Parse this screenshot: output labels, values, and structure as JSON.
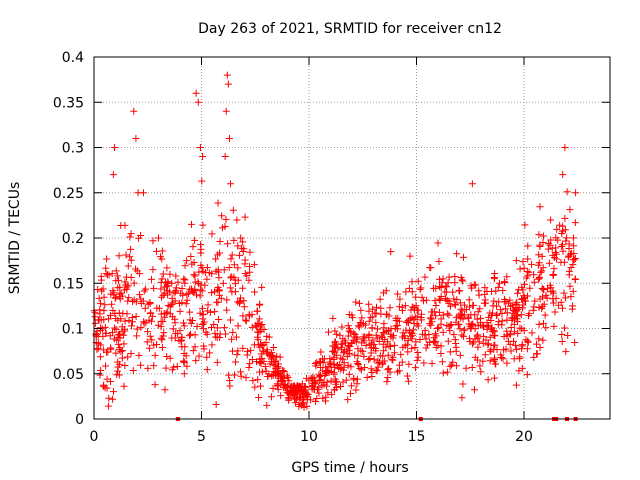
{
  "chart_data": {
    "type": "scatter",
    "title": "Day 263 of 2021, SRMTID for receiver cn12",
    "xlabel": "GPS time / hours",
    "ylabel": "SRMTID / TECUs",
    "xlim": [
      0,
      24
    ],
    "ylim": [
      0,
      0.4
    ],
    "x_ticks": [
      0,
      5,
      10,
      15,
      20
    ],
    "x_tick_labels": [
      "0",
      "5",
      "10",
      "15",
      "20"
    ],
    "y_ticks": [
      0,
      0.05,
      0.1,
      0.15,
      0.2,
      0.25,
      0.3,
      0.35,
      0.4
    ],
    "y_tick_labels": [
      "0",
      "0.05",
      "0.1",
      "0.15",
      "0.2",
      "0.25",
      "0.3",
      "0.35",
      "0.4"
    ],
    "grid": true,
    "marker": "+",
    "color": "#ff0000",
    "envelope": {
      "x": [
        0,
        0.5,
        1,
        1.5,
        2,
        2.5,
        3,
        3.5,
        4,
        4.5,
        5,
        5.5,
        6,
        6.5,
        7,
        7.5,
        8,
        8.5,
        9,
        9.5,
        10,
        10.5,
        11,
        11.5,
        12,
        12.5,
        13,
        13.5,
        14,
        14.5,
        15,
        15.5,
        16,
        16.5,
        17,
        17.5,
        18,
        18.5,
        19,
        19.5,
        20,
        20.5,
        21,
        21.5,
        22,
        22.4
      ],
      "mean": [
        0.095,
        0.1,
        0.11,
        0.12,
        0.13,
        0.12,
        0.11,
        0.11,
        0.1,
        0.12,
        0.14,
        0.12,
        0.13,
        0.14,
        0.13,
        0.1,
        0.07,
        0.05,
        0.035,
        0.03,
        0.03,
        0.045,
        0.06,
        0.07,
        0.08,
        0.085,
        0.09,
        0.09,
        0.095,
        0.1,
        0.1,
        0.11,
        0.12,
        0.115,
        0.11,
        0.105,
        0.1,
        0.1,
        0.1,
        0.11,
        0.12,
        0.13,
        0.15,
        0.16,
        0.17,
        0.15
      ],
      "spread": [
        0.03,
        0.04,
        0.045,
        0.05,
        0.055,
        0.05,
        0.045,
        0.045,
        0.04,
        0.05,
        0.06,
        0.05,
        0.055,
        0.06,
        0.05,
        0.04,
        0.025,
        0.015,
        0.01,
        0.008,
        0.01,
        0.015,
        0.02,
        0.025,
        0.03,
        0.03,
        0.03,
        0.03,
        0.03,
        0.035,
        0.035,
        0.035,
        0.04,
        0.04,
        0.04,
        0.035,
        0.035,
        0.035,
        0.035,
        0.04,
        0.04,
        0.045,
        0.05,
        0.05,
        0.05,
        0.04
      ]
    },
    "peaks": [
      {
        "x": 0.9,
        "y": 0.27
      },
      {
        "x": 0.95,
        "y": 0.3
      },
      {
        "x": 1.85,
        "y": 0.34
      },
      {
        "x": 1.95,
        "y": 0.31
      },
      {
        "x": 2.05,
        "y": 0.25
      },
      {
        "x": 4.75,
        "y": 0.36
      },
      {
        "x": 4.85,
        "y": 0.35
      },
      {
        "x": 4.95,
        "y": 0.3
      },
      {
        "x": 5.05,
        "y": 0.29
      },
      {
        "x": 6.2,
        "y": 0.38
      },
      {
        "x": 6.25,
        "y": 0.37
      },
      {
        "x": 6.15,
        "y": 0.34
      },
      {
        "x": 6.3,
        "y": 0.31
      },
      {
        "x": 6.1,
        "y": 0.29
      },
      {
        "x": 6.35,
        "y": 0.26
      },
      {
        "x": 17.6,
        "y": 0.26
      },
      {
        "x": 21.9,
        "y": 0.3
      },
      {
        "x": 21.8,
        "y": 0.27
      },
      {
        "x": 22.4,
        "y": 0.25
      },
      {
        "x": 22.3,
        "y": 0.2
      },
      {
        "x": 13.8,
        "y": 0.185
      },
      {
        "x": 14.7,
        "y": 0.18
      },
      {
        "x": 2.3,
        "y": 0.25
      },
      {
        "x": 3.0,
        "y": 0.2
      }
    ],
    "gaps_on_x_axis": [
      3.9,
      15.2,
      21.4,
      21.5,
      22.0,
      22.4
    ]
  }
}
